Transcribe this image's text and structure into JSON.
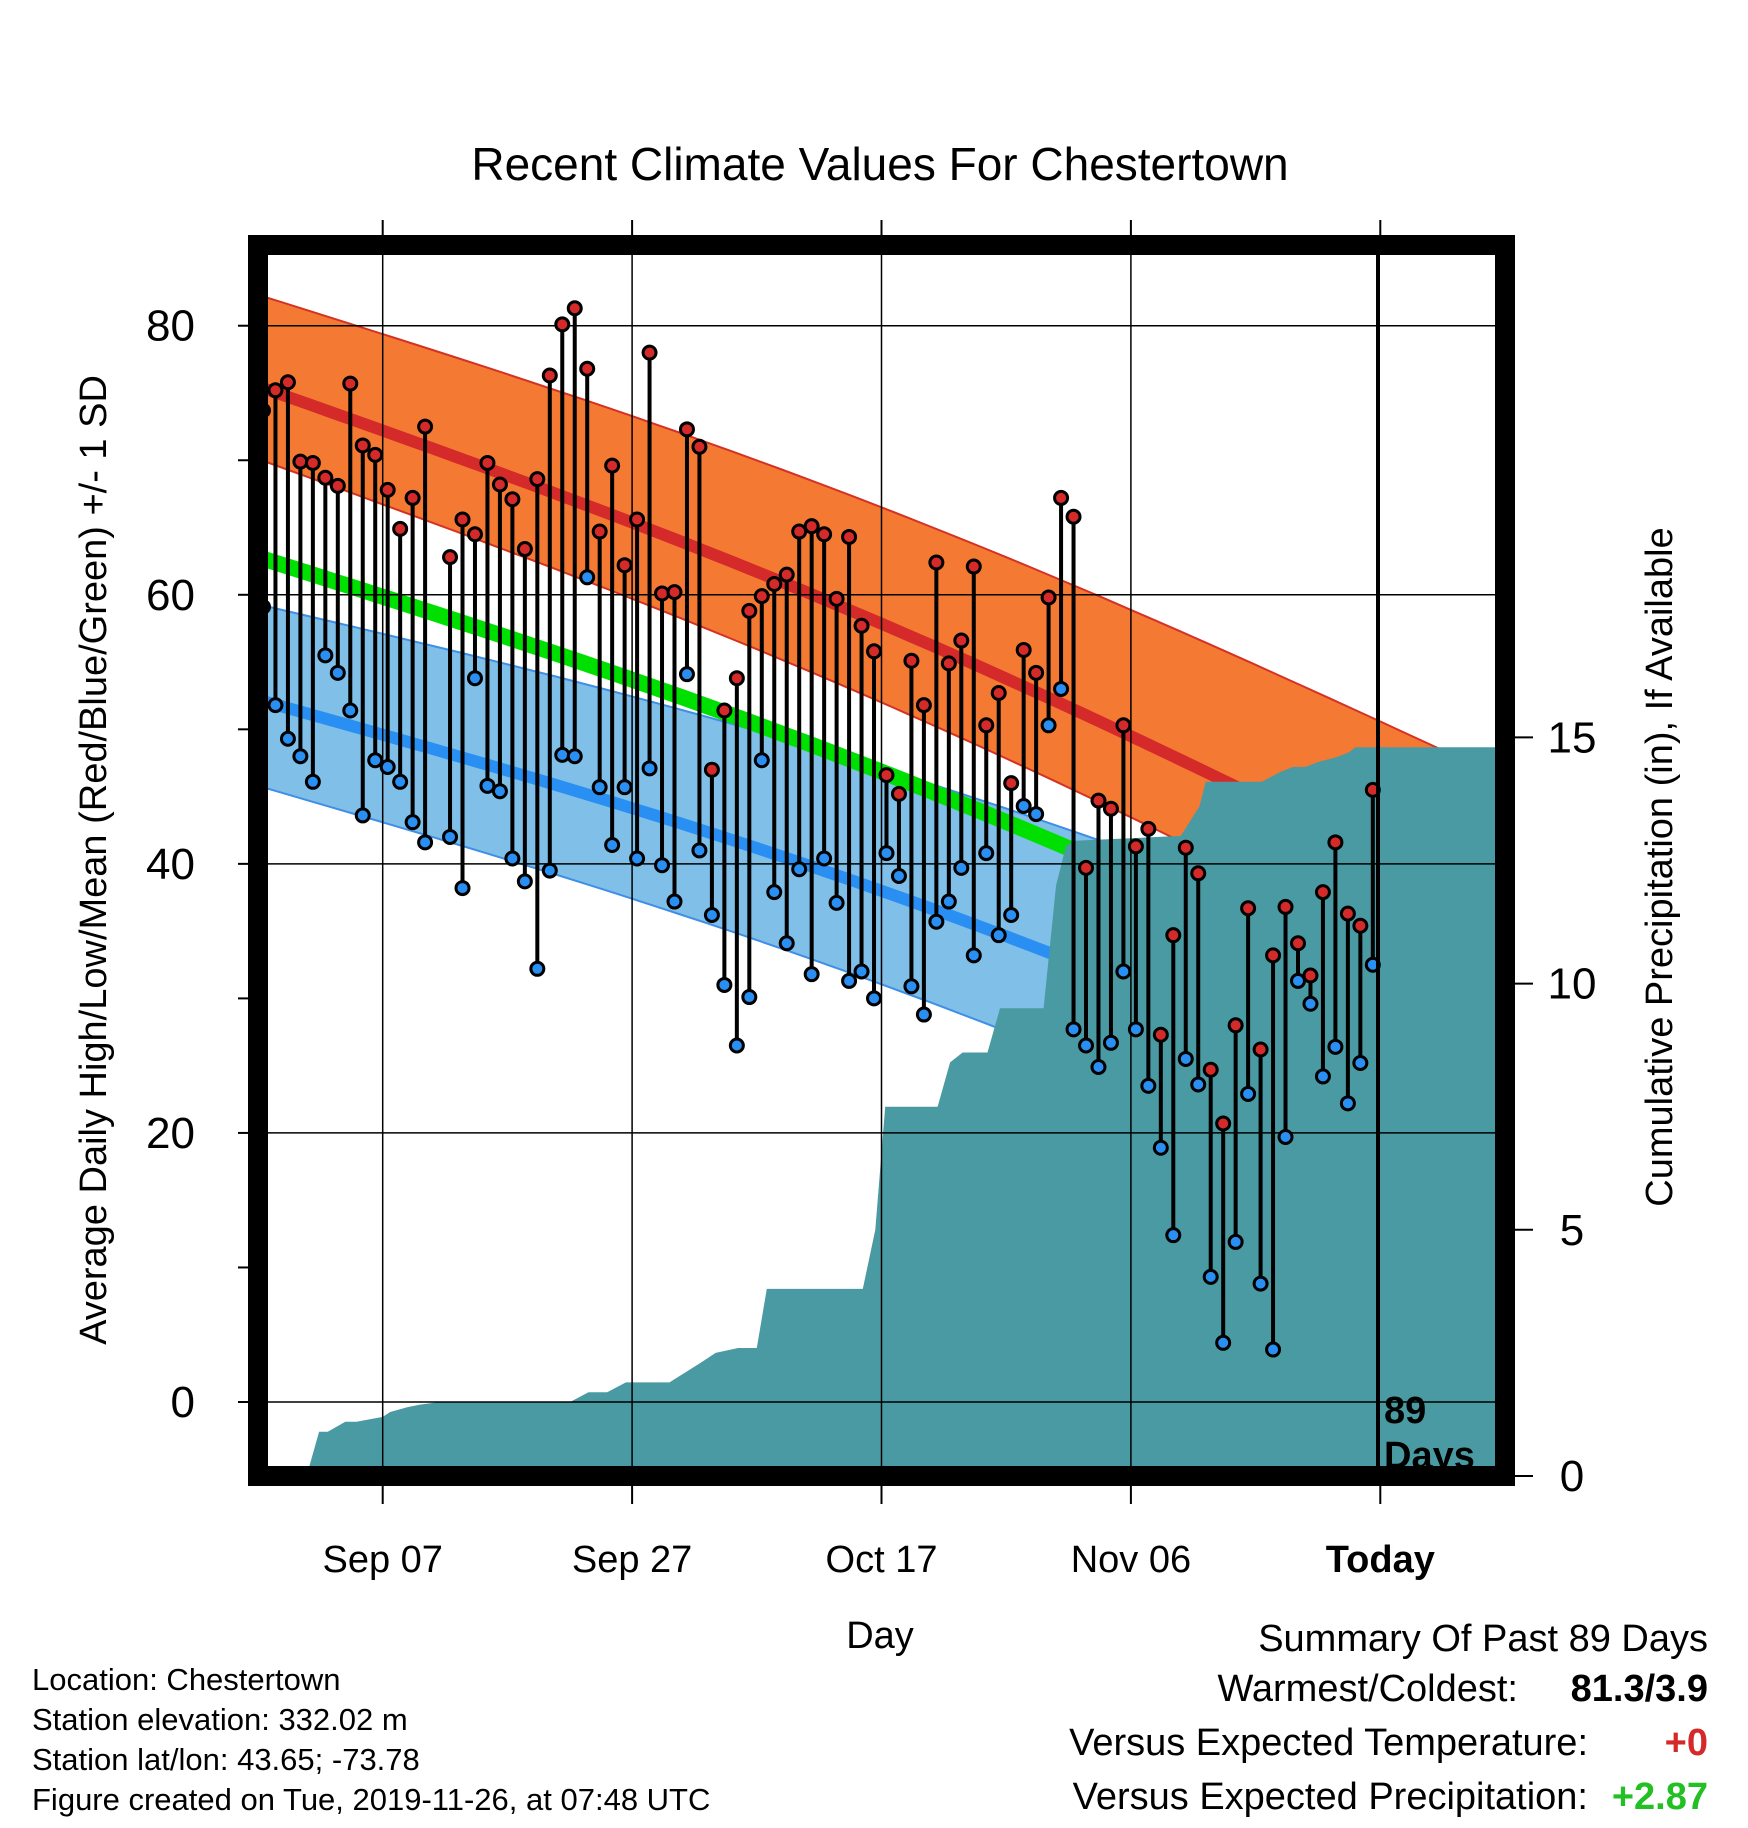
{
  "chart_data": {
    "type": "line",
    "title": "Recent Climate Values For Chestertown",
    "xlabel": "Day",
    "ylabel": "Average Daily High/Low/Mean (Red/Blue/Green) +/- 1 SD",
    "y2label": "Cumulative Precipitation (in), If Available",
    "x_ticks": [
      "Sep 07",
      "Sep 27",
      "Oct 17",
      "Nov 06",
      "Today"
    ],
    "x_tick_days": [
      10,
      30,
      50,
      70,
      90
    ],
    "today_marker_label": [
      "89",
      "Days"
    ],
    "ylim": [
      -5.5,
      86
    ],
    "y_ticks": [
      0,
      20,
      40,
      60,
      80
    ],
    "y2lim": [
      0,
      25
    ],
    "y2_ticks": [
      0,
      5,
      10,
      15
    ],
    "xlim": [
      0,
      100
    ],
    "grid": true,
    "normal_high": {
      "days": [
        0,
        100
      ],
      "mean": [
        75.5,
        35.8
      ],
      "upper": [
        82.3,
        46.3
      ],
      "lower": [
        70.1,
        29.5
      ]
    },
    "normal_low": {
      "days": [
        0,
        100
      ],
      "mean": [
        52.2,
        19.4
      ],
      "upper": [
        59.3,
        30.5
      ],
      "lower": [
        45.8,
        11.9
      ]
    },
    "normal_mean": {
      "days": [
        0,
        100
      ],
      "values": [
        62.8,
        26.5
      ]
    },
    "observed": [
      {
        "day": 0,
        "high": 73.7,
        "low": 59.1
      },
      {
        "day": 1,
        "high": 75.2,
        "low": 51.8
      },
      {
        "day": 2,
        "high": 75.8,
        "low": 49.3
      },
      {
        "day": 3,
        "high": 69.9,
        "low": 48.0
      },
      {
        "day": 4,
        "high": 69.8,
        "low": 46.1
      },
      {
        "day": 5,
        "high": 68.7,
        "low": 55.5
      },
      {
        "day": 6,
        "high": 68.1,
        "low": 54.2
      },
      {
        "day": 7,
        "high": 75.7,
        "low": 51.4
      },
      {
        "day": 8,
        "high": 71.1,
        "low": 43.6
      },
      {
        "day": 9,
        "high": 70.4,
        "low": 47.7
      },
      {
        "day": 10,
        "high": 67.8,
        "low": 47.2
      },
      {
        "day": 11,
        "high": 64.9,
        "low": 46.1
      },
      {
        "day": 12,
        "high": 67.2,
        "low": 43.1
      },
      {
        "day": 13,
        "high": 72.5,
        "low": 41.6
      },
      {
        "day": 15,
        "high": 62.8,
        "low": 42.0
      },
      {
        "day": 16,
        "high": 65.6,
        "low": 38.2
      },
      {
        "day": 17,
        "high": 64.5,
        "low": 53.8
      },
      {
        "day": 18,
        "high": 69.8,
        "low": 45.8
      },
      {
        "day": 19,
        "high": 68.2,
        "low": 45.4
      },
      {
        "day": 20,
        "high": 67.1,
        "low": 40.4
      },
      {
        "day": 21,
        "high": 63.4,
        "low": 38.7
      },
      {
        "day": 22,
        "high": 68.6,
        "low": 32.2
      },
      {
        "day": 23,
        "high": 76.3,
        "low": 39.5
      },
      {
        "day": 24,
        "high": 80.1,
        "low": 48.1
      },
      {
        "day": 25,
        "high": 81.3,
        "low": 48.0
      },
      {
        "day": 26,
        "high": 76.8,
        "low": 61.3
      },
      {
        "day": 27,
        "high": 64.7,
        "low": 45.7
      },
      {
        "day": 28,
        "high": 69.6,
        "low": 41.4
      },
      {
        "day": 29,
        "high": 62.2,
        "low": 45.7
      },
      {
        "day": 30,
        "high": 65.6,
        "low": 40.4
      },
      {
        "day": 31,
        "high": 78.0,
        "low": 47.1
      },
      {
        "day": 32,
        "high": 60.1,
        "low": 39.9
      },
      {
        "day": 33,
        "high": 60.2,
        "low": 37.2
      },
      {
        "day": 34,
        "high": 72.3,
        "low": 54.1
      },
      {
        "day": 35,
        "high": 71.0,
        "low": 41.0
      },
      {
        "day": 36,
        "high": 47.0,
        "low": 36.2
      },
      {
        "day": 37,
        "high": 51.4,
        "low": 31.0
      },
      {
        "day": 38,
        "high": 53.8,
        "low": 26.5
      },
      {
        "day": 39,
        "high": 58.8,
        "low": 30.1
      },
      {
        "day": 40,
        "high": 59.9,
        "low": 47.7
      },
      {
        "day": 41,
        "high": 60.8,
        "low": 37.9
      },
      {
        "day": 42,
        "high": 61.5,
        "low": 34.1
      },
      {
        "day": 43,
        "high": 64.7,
        "low": 39.6
      },
      {
        "day": 44,
        "high": 65.1,
        "low": 31.8
      },
      {
        "day": 45,
        "high": 64.5,
        "low": 40.4
      },
      {
        "day": 46,
        "high": 59.7,
        "low": 37.1
      },
      {
        "day": 47,
        "high": 64.3,
        "low": 31.3
      },
      {
        "day": 48,
        "high": 57.7,
        "low": 32.0
      },
      {
        "day": 49,
        "high": 55.8,
        "low": 30.0
      },
      {
        "day": 50,
        "high": 46.6,
        "low": 40.8
      },
      {
        "day": 51,
        "high": 45.2,
        "low": 39.1
      },
      {
        "day": 52,
        "high": 55.1,
        "low": 30.9
      },
      {
        "day": 53,
        "high": 51.8,
        "low": 28.8
      },
      {
        "day": 54,
        "high": 62.4,
        "low": 35.7
      },
      {
        "day": 55,
        "high": 54.9,
        "low": 37.2
      },
      {
        "day": 56,
        "high": 56.6,
        "low": 39.7
      },
      {
        "day": 57,
        "high": 62.1,
        "low": 33.2
      },
      {
        "day": 58,
        "high": 50.3,
        "low": 40.8
      },
      {
        "day": 59,
        "high": 52.7,
        "low": 34.7
      },
      {
        "day": 60,
        "high": 46.0,
        "low": 36.2
      },
      {
        "day": 61,
        "high": 55.9,
        "low": 44.3
      },
      {
        "day": 62,
        "high": 54.2,
        "low": 43.7
      },
      {
        "day": 63,
        "high": 59.8,
        "low": 50.3
      },
      {
        "day": 64,
        "high": 67.2,
        "low": 53.0
      },
      {
        "day": 65,
        "high": 65.8,
        "low": 27.7
      },
      {
        "day": 66,
        "high": 39.7,
        "low": 26.5
      },
      {
        "day": 67,
        "high": 44.7,
        "low": 24.9
      },
      {
        "day": 68,
        "high": 44.1,
        "low": 26.7
      },
      {
        "day": 69,
        "high": 50.3,
        "low": 32.0
      },
      {
        "day": 70,
        "high": 41.3,
        "low": 27.7
      },
      {
        "day": 71,
        "high": 42.6,
        "low": 23.5
      },
      {
        "day": 72,
        "high": 27.3,
        "low": 18.9
      },
      {
        "day": 73,
        "high": 34.7,
        "low": 12.4
      },
      {
        "day": 74,
        "high": 41.2,
        "low": 25.5
      },
      {
        "day": 75,
        "high": 39.3,
        "low": 23.6
      },
      {
        "day": 76,
        "high": 24.7,
        "low": 9.3
      },
      {
        "day": 77,
        "high": 20.7,
        "low": 4.4
      },
      {
        "day": 78,
        "high": 28.0,
        "low": 11.9
      },
      {
        "day": 79,
        "high": 36.7,
        "low": 22.9
      },
      {
        "day": 80,
        "high": 26.2,
        "low": 8.8
      },
      {
        "day": 81,
        "high": 33.2,
        "low": 3.9
      },
      {
        "day": 82,
        "high": 36.8,
        "low": 19.7
      },
      {
        "day": 83,
        "high": 34.1,
        "low": 31.3
      },
      {
        "day": 84,
        "high": 31.7,
        "low": 29.6
      },
      {
        "day": 85,
        "high": 37.9,
        "low": 24.2
      },
      {
        "day": 86,
        "high": 41.6,
        "low": 26.4
      },
      {
        "day": 87,
        "high": 36.3,
        "low": 22.2
      },
      {
        "day": 88,
        "high": 35.4,
        "low": 25.2
      },
      {
        "day": 89,
        "high": 45.5,
        "low": 32.5
      }
    ],
    "cumulative_precipitation": {
      "days": [
        0,
        3.9,
        4.9,
        5.6,
        7.0,
        7.9,
        10.0,
        10.6,
        12.0,
        13.0,
        14.5,
        25.0,
        26.5,
        28.0,
        29.5,
        33.0,
        35.5,
        36.7,
        38.5,
        40.0,
        40.8,
        48.5,
        49.5,
        50.3,
        54.5,
        55.5,
        56.5,
        58.5,
        59.5,
        63.0,
        64.0,
        64.8,
        65.5,
        74.0,
        75.5,
        76.0,
        79.0,
        80.5,
        82.0,
        83.0,
        84.0,
        85.0,
        86.5,
        87.5,
        88.0,
        100.0
      ],
      "values": [
        0,
        0,
        0.9,
        0.9,
        1.1,
        1.1,
        1.2,
        1.3,
        1.4,
        1.45,
        1.5,
        1.5,
        1.7,
        1.7,
        1.9,
        1.9,
        2.3,
        2.5,
        2.6,
        2.6,
        3.8,
        3.8,
        5.0,
        7.5,
        7.5,
        8.4,
        8.6,
        8.6,
        9.5,
        9.5,
        12.0,
        12.8,
        12.9,
        13.0,
        13.6,
        14.1,
        14.1,
        14.1,
        14.3,
        14.4,
        14.4,
        14.5,
        14.6,
        14.7,
        14.8,
        14.8
      ]
    },
    "colors": {
      "high_band": "#f47a33",
      "high_band_edge": "#d33225",
      "high_mean": "#d42a2a",
      "low_band": "#7fbfe8",
      "low_band_edge": "#3f8fe6",
      "low_mean": "#2a8ff2",
      "mean_line": "#00e000",
      "overlap": "#931a1a",
      "precip": "#4a9aa3",
      "high_dot": "#d42a2a",
      "low_dot": "#2a8ff2"
    }
  },
  "footer": {
    "location": "Location: Chestertown",
    "elevation": "Station elevation: 332.02 m",
    "latlon": "Station lat/lon: 43.65; -73.78",
    "created": "Figure created on Tue, 2019-11-26, at 07:48 UTC"
  },
  "summary": {
    "title": "Summary Of Past 89 Days",
    "rows": [
      {
        "label": "Warmest/Coldest:",
        "value": "81.3/3.9",
        "color": "#000000"
      },
      {
        "label": "Versus Expected Temperature:",
        "value": "+0",
        "color": "#d42a2a"
      },
      {
        "label": "Versus Expected Precipitation:",
        "value": "+2.87",
        "color": "#22c022"
      }
    ]
  }
}
